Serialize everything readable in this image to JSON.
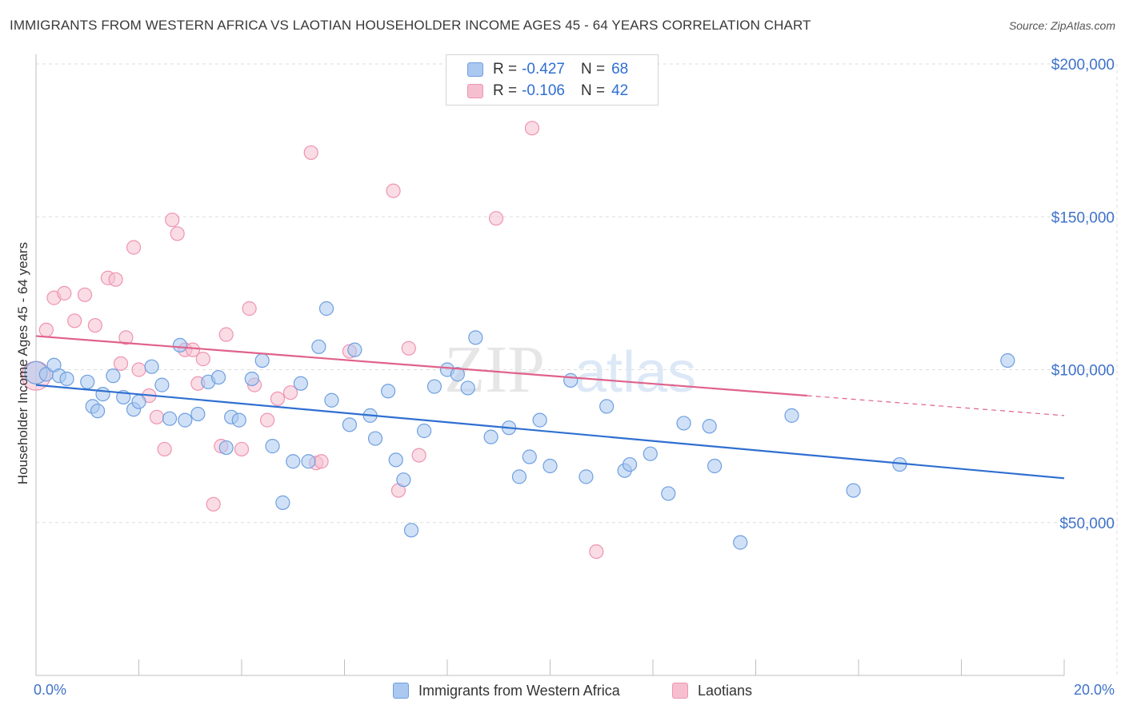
{
  "header": {
    "title": "IMMIGRANTS FROM WESTERN AFRICA VS LAOTIAN HOUSEHOLDER INCOME AGES 45 - 64 YEARS CORRELATION CHART",
    "source": "Source: ZipAtlas.com"
  },
  "legend": {
    "r_label": "R =",
    "n_label": "N =",
    "entries": [
      {
        "name": "Immigrants from Western Africa",
        "r": "-0.427",
        "n": "68"
      },
      {
        "name": "Laotians",
        "r": "-0.106",
        "n": "42"
      }
    ]
  },
  "watermark": {
    "zip": "ZIP",
    "atlas": "atlas"
  },
  "colors": {
    "blue_fill": "#aac8f0",
    "blue_stroke": "#6f9fe0",
    "blue_line": "#2f6fd1",
    "pink_fill": "#f6bfd0",
    "pink_stroke": "#ee94b2",
    "pink_line": "#e0628a",
    "axis_text": "#3f72c9",
    "grid": "#dddddd"
  },
  "chart_data": {
    "type": "scatter",
    "title": "IMMIGRANTS FROM WESTERN AFRICA VS LAOTIAN HOUSEHOLDER INCOME AGES 45 - 64 YEARS CORRELATION CHART",
    "xlabel": "",
    "ylabel": "Householder Income Ages 45 - 64 years",
    "xlim": [
      0,
      20
    ],
    "ylim": [
      0,
      200000
    ],
    "x_tick_labels": [
      "0.0%",
      "20.0%"
    ],
    "y_ticks": [
      50000,
      100000,
      150000,
      200000
    ],
    "y_tick_labels": [
      "$50,000",
      "$100,000",
      "$150,000",
      "$200,000"
    ],
    "grid": true,
    "legend_position": "top-center",
    "series": [
      {
        "name": "Immigrants from Western Africa",
        "color": "#aac8f0",
        "points": [
          [
            0.0,
            99000
          ],
          [
            0.2,
            98500
          ],
          [
            0.35,
            101500
          ],
          [
            0.45,
            98000
          ],
          [
            0.6,
            97000
          ],
          [
            1.0,
            96000
          ],
          [
            1.1,
            88000
          ],
          [
            1.2,
            86500
          ],
          [
            1.3,
            92000
          ],
          [
            1.5,
            98000
          ],
          [
            1.7,
            91000
          ],
          [
            1.9,
            87000
          ],
          [
            2.0,
            89500
          ],
          [
            2.25,
            101000
          ],
          [
            2.45,
            95000
          ],
          [
            2.6,
            84000
          ],
          [
            2.8,
            108000
          ],
          [
            2.9,
            83500
          ],
          [
            3.15,
            85500
          ],
          [
            3.35,
            96000
          ],
          [
            3.55,
            97500
          ],
          [
            3.7,
            74500
          ],
          [
            3.8,
            84500
          ],
          [
            3.95,
            83500
          ],
          [
            4.2,
            97000
          ],
          [
            4.4,
            103000
          ],
          [
            4.6,
            75000
          ],
          [
            4.8,
            56500
          ],
          [
            5.0,
            70000
          ],
          [
            5.15,
            95500
          ],
          [
            5.3,
            70000
          ],
          [
            5.5,
            107500
          ],
          [
            5.65,
            120000
          ],
          [
            5.75,
            90000
          ],
          [
            6.1,
            82000
          ],
          [
            6.2,
            106500
          ],
          [
            6.5,
            85000
          ],
          [
            6.6,
            77500
          ],
          [
            6.85,
            93000
          ],
          [
            7.0,
            70500
          ],
          [
            7.15,
            64000
          ],
          [
            7.3,
            47500
          ],
          [
            7.55,
            80000
          ],
          [
            7.75,
            94500
          ],
          [
            8.0,
            100000
          ],
          [
            8.2,
            98500
          ],
          [
            8.4,
            94000
          ],
          [
            8.55,
            110500
          ],
          [
            8.85,
            78000
          ],
          [
            9.2,
            81000
          ],
          [
            9.4,
            65000
          ],
          [
            9.6,
            71500
          ],
          [
            9.8,
            83500
          ],
          [
            10.0,
            68500
          ],
          [
            10.4,
            96500
          ],
          [
            10.7,
            65000
          ],
          [
            11.1,
            88000
          ],
          [
            11.45,
            67000
          ],
          [
            11.55,
            69000
          ],
          [
            11.95,
            72500
          ],
          [
            12.3,
            59500
          ],
          [
            12.6,
            82500
          ],
          [
            13.1,
            81500
          ],
          [
            13.2,
            68500
          ],
          [
            13.7,
            43500
          ],
          [
            14.7,
            85000
          ],
          [
            15.9,
            60500
          ],
          [
            16.8,
            69000
          ],
          [
            18.9,
            103000
          ]
        ]
      },
      {
        "name": "Laotians",
        "color": "#f6bfd0",
        "points": [
          [
            0.0,
            98000
          ],
          [
            0.2,
            113000
          ],
          [
            0.35,
            123500
          ],
          [
            0.55,
            125000
          ],
          [
            0.75,
            116000
          ],
          [
            0.95,
            124500
          ],
          [
            1.15,
            114500
          ],
          [
            1.4,
            130000
          ],
          [
            1.55,
            129500
          ],
          [
            1.65,
            102000
          ],
          [
            1.75,
            110500
          ],
          [
            1.9,
            140000
          ],
          [
            2.0,
            100000
          ],
          [
            2.2,
            91500
          ],
          [
            2.35,
            84500
          ],
          [
            2.5,
            74000
          ],
          [
            2.65,
            149000
          ],
          [
            2.75,
            144500
          ],
          [
            2.9,
            106500
          ],
          [
            3.05,
            106500
          ],
          [
            3.15,
            95500
          ],
          [
            3.25,
            103500
          ],
          [
            3.45,
            56000
          ],
          [
            3.6,
            75000
          ],
          [
            3.7,
            111500
          ],
          [
            4.0,
            74000
          ],
          [
            4.15,
            120000
          ],
          [
            4.25,
            95000
          ],
          [
            4.5,
            83500
          ],
          [
            4.7,
            90500
          ],
          [
            4.95,
            92500
          ],
          [
            5.35,
            171000
          ],
          [
            5.45,
            69500
          ],
          [
            5.55,
            70000
          ],
          [
            6.1,
            106000
          ],
          [
            6.95,
            158500
          ],
          [
            7.05,
            60500
          ],
          [
            7.25,
            107000
          ],
          [
            7.45,
            72000
          ],
          [
            8.95,
            149500
          ],
          [
            9.65,
            179000
          ],
          [
            10.9,
            40500
          ]
        ]
      }
    ],
    "trend_lines": [
      {
        "series": "Immigrants from Western Africa",
        "x": [
          0,
          20
        ],
        "y": [
          95000,
          64500
        ]
      },
      {
        "series": "Laotians",
        "x": [
          0,
          15
        ],
        "y": [
          111000,
          91500
        ],
        "dashed_extension_to": [
          20,
          85000
        ]
      }
    ]
  }
}
